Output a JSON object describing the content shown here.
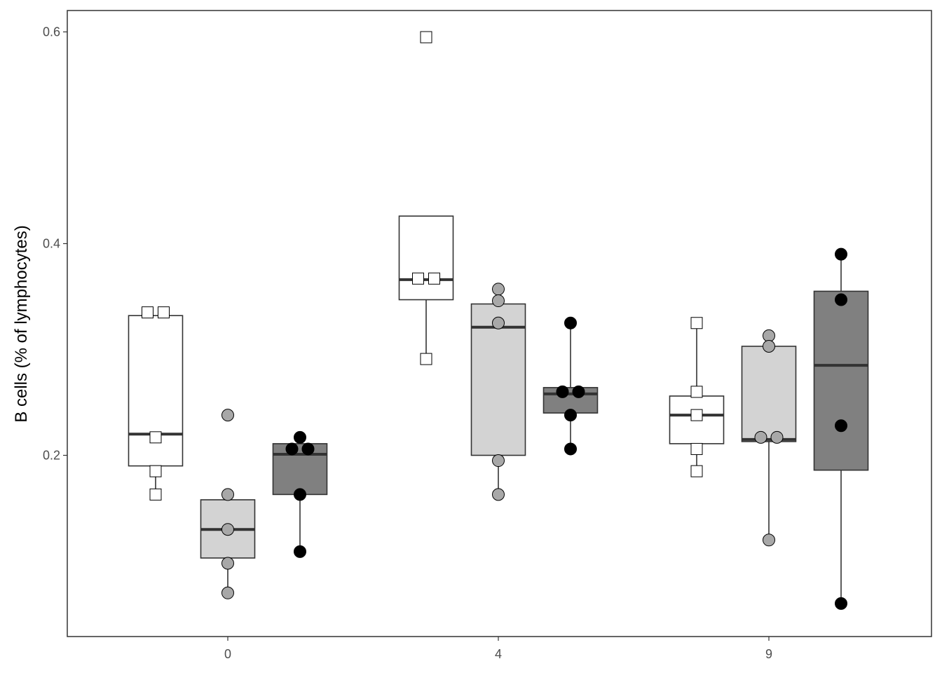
{
  "chart_data": {
    "type": "boxplot",
    "title": "",
    "xlabel": "",
    "ylabel": "B cells (% of lymphocytes)",
    "categories": [
      "0",
      "4",
      "9"
    ],
    "yticks": [
      0.2,
      0.4,
      0.6
    ],
    "ylim": [
      0.025,
      0.62
    ],
    "grid": false,
    "legend": "none",
    "series": [
      {
        "fill": "#ffffff",
        "marker": "square",
        "marker_fill": "#ffffff",
        "boxes": [
          {
            "q1": 0.19,
            "median": 0.22,
            "q3": 0.332,
            "whisker_low": 0.163,
            "whisker_high": 0.332
          },
          {
            "q1": 0.347,
            "median": 0.366,
            "q3": 0.426,
            "whisker_low": 0.291,
            "whisker_high": 0.426
          },
          {
            "q1": 0.211,
            "median": 0.238,
            "q3": 0.256,
            "whisker_low": 0.185,
            "whisker_high": 0.325
          }
        ],
        "points": [
          [
            0.335,
            0.335,
            0.217,
            0.185,
            0.163
          ],
          [
            0.595,
            0.367,
            0.367,
            0.291
          ],
          [
            0.325,
            0.26,
            0.238,
            0.206,
            0.185
          ]
        ]
      },
      {
        "fill": "#d3d3d3",
        "marker": "circle",
        "marker_fill": "#a8a8a8",
        "boxes": [
          {
            "q1": 0.103,
            "median": 0.13,
            "q3": 0.158,
            "whisker_low": 0.07,
            "whisker_high": 0.158
          },
          {
            "q1": 0.2,
            "median": 0.321,
            "q3": 0.343,
            "whisker_low": 0.163,
            "whisker_high": 0.357
          },
          {
            "q1": 0.213,
            "median": 0.215,
            "q3": 0.303,
            "whisker_low": 0.12,
            "whisker_high": 0.313
          }
        ],
        "points": [
          [
            0.238,
            0.163,
            0.13,
            0.098,
            0.07
          ],
          [
            0.357,
            0.346,
            0.325,
            0.195,
            0.163
          ],
          [
            0.313,
            0.303,
            0.217,
            0.217,
            0.12
          ]
        ]
      },
      {
        "fill": "#808080",
        "marker": "circle",
        "marker_fill": "#000000",
        "boxes": [
          {
            "q1": 0.163,
            "median": 0.201,
            "q3": 0.211,
            "whisker_low": 0.109,
            "whisker_high": 0.217
          },
          {
            "q1": 0.24,
            "median": 0.258,
            "q3": 0.264,
            "whisker_low": 0.206,
            "whisker_high": 0.325
          },
          {
            "q1": 0.186,
            "median": 0.285,
            "q3": 0.355,
            "whisker_low": 0.06,
            "whisker_high": 0.39
          }
        ],
        "points": [
          [
            0.217,
            0.206,
            0.206,
            0.163,
            0.109
          ],
          [
            0.325,
            0.26,
            0.26,
            0.238,
            0.206
          ],
          [
            0.39,
            0.347,
            0.228,
            0.06
          ]
        ]
      }
    ]
  }
}
